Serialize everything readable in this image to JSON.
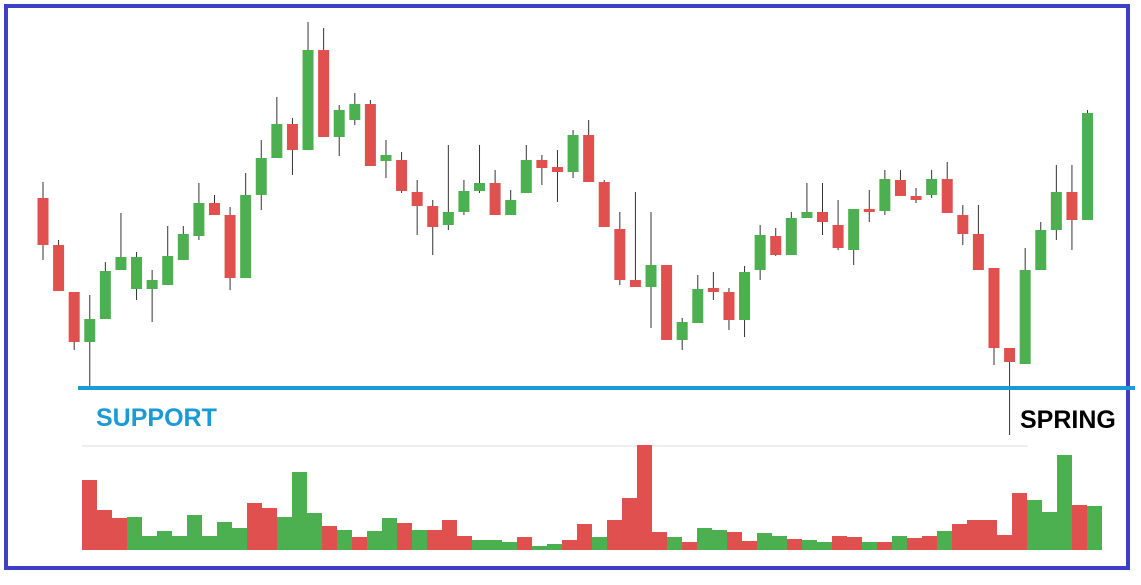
{
  "chart_data": {
    "type": "candlestick",
    "annotations": {
      "support": "SUPPORT",
      "spring": "SPRING"
    },
    "support_level": 62,
    "up_color": "#4caf50",
    "down_color": "#e0504e",
    "support_color": "#1a9ad6",
    "ylim": [
      0,
      440
    ],
    "volume_lim": [
      0,
      110
    ],
    "open": [
      252,
      205,
      158,
      108,
      131,
      180,
      161,
      161,
      165,
      190,
      214,
      247,
      235,
      172,
      255,
      292,
      326,
      300,
      400,
      313,
      330,
      346,
      289,
      290,
      258,
      244,
      225,
      238,
      259,
      267,
      235,
      257,
      290,
      283,
      278,
      315,
      268,
      221,
      170,
      163,
      185,
      110,
      127,
      162,
      158,
      130,
      180,
      214,
      195,
      232,
      238,
      225,
      200,
      241,
      239,
      270,
      254,
      255,
      271,
      235,
      216,
      182,
      102,
      86,
      180,
      220,
      258,
      230
    ],
    "high": [
      268,
      210,
      158,
      155,
      188,
      237,
      198,
      180,
      224,
      224,
      267,
      255,
      243,
      277,
      310,
      353,
      332,
      428,
      422,
      345,
      357,
      350,
      310,
      298,
      270,
      250,
      305,
      270,
      305,
      280,
      260,
      305,
      295,
      300,
      320,
      330,
      270,
      238,
      258,
      238,
      185,
      132,
      175,
      178,
      162,
      184,
      225,
      222,
      238,
      267,
      267,
      250,
      241,
      260,
      280,
      280,
      262,
      280,
      288,
      245,
      245,
      182,
      102,
      202,
      228,
      285,
      285,
      340
    ],
    "low": [
      190,
      159,
      100,
      62,
      131,
      180,
      150,
      128,
      165,
      190,
      210,
      235,
      160,
      172,
      240,
      292,
      275,
      300,
      313,
      294,
      325,
      284,
      272,
      257,
      215,
      195,
      220,
      235,
      257,
      235,
      235,
      257,
      265,
      248,
      272,
      268,
      223,
      165,
      163,
      122,
      110,
      100,
      127,
      150,
      120,
      113,
      170,
      194,
      195,
      232,
      215,
      200,
      185,
      228,
      235,
      254,
      247,
      252,
      237,
      205,
      180,
      85,
      15,
      86,
      180,
      210,
      200,
      230
    ],
    "close": [
      205,
      159,
      108,
      131,
      179,
      193,
      193,
      170,
      194,
      216,
      247,
      235,
      172,
      255,
      292,
      326,
      300,
      400,
      313,
      340,
      346,
      284,
      295,
      259,
      244,
      223,
      238,
      259,
      267,
      235,
      250,
      290,
      282,
      278,
      315,
      268,
      223,
      170,
      163,
      185,
      110,
      128,
      161,
      158,
      130,
      178,
      215,
      195,
      232,
      238,
      228,
      202,
      241,
      238,
      271,
      254,
      250,
      271,
      237,
      216,
      180,
      102,
      88,
      180,
      220,
      258,
      230,
      337
    ],
    "volume": [
      70,
      40,
      32,
      33,
      14,
      19,
      14,
      35,
      14,
      28,
      22,
      47,
      42,
      33,
      78,
      37,
      24,
      20,
      13,
      19,
      32,
      27,
      20,
      20,
      30,
      14,
      10,
      10,
      8,
      13,
      4,
      6,
      10,
      26,
      13,
      30,
      52,
      105,
      18,
      13,
      8,
      22,
      20,
      18,
      9,
      17,
      14,
      11,
      10,
      8,
      14,
      13,
      8,
      8,
      14,
      12,
      14,
      19,
      26,
      30,
      30,
      15,
      57,
      50,
      38,
      95,
      45,
      44
    ]
  }
}
